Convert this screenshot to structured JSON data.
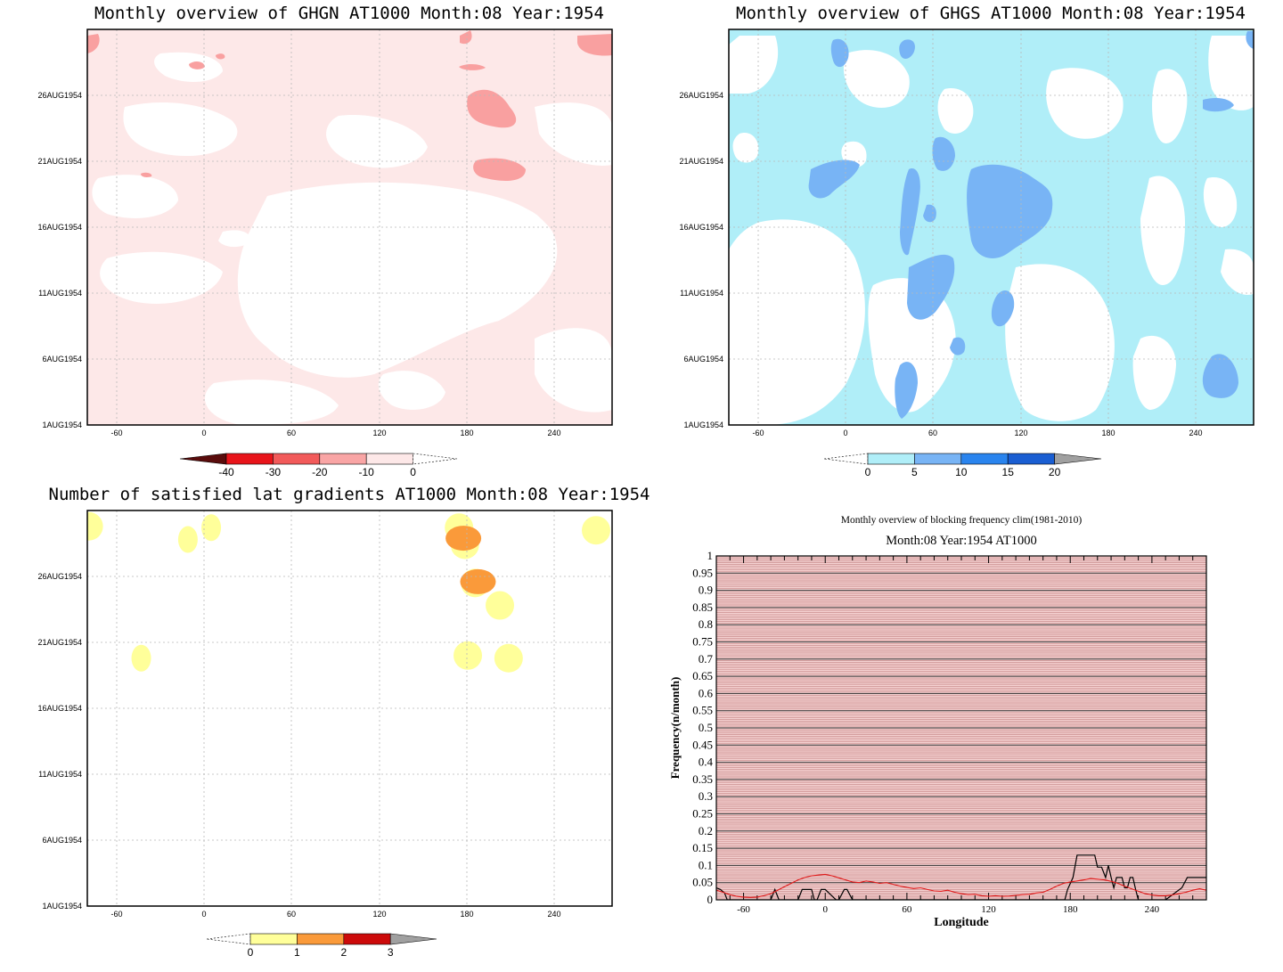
{
  "chart_data": [
    {
      "type": "heatmap",
      "title": "Monthly overview of GHGN AT1000 Month:08 Year:1954",
      "xlim": [
        -73,
        287
      ],
      "x_ticks": [
        -60,
        0,
        60,
        120,
        180,
        240
      ],
      "x_tick_labels": [
        "-60",
        "0",
        "60",
        "120",
        "180",
        "240"
      ],
      "y_tick_labels": [
        "1AUG1954",
        "6AUG1954",
        "11AUG1954",
        "16AUG1954",
        "21AUG1954",
        "26AUG1954"
      ],
      "y_tick_values": [
        1,
        6,
        11,
        16,
        21,
        26
      ],
      "ylim": [
        1,
        31
      ],
      "colorbar": {
        "levels": [
          "-40",
          "-30",
          "-20",
          "-10",
          "0"
        ],
        "colors": [
          "#5a0c0c",
          "#e8141a",
          "#f25a5a",
          "#f9a5a5",
          "#fde8e8"
        ],
        "extend_low_color": "#5a0c0c"
      },
      "fill_colors": {
        "background": "#fde8e8",
        "low": "#ffffff",
        "high": "#f9a0a0",
        "peak": "#ee5050"
      }
    },
    {
      "type": "heatmap",
      "title": "Monthly overview of GHGS AT1000 Month:08 Year:1954",
      "xlim": [
        -73,
        287
      ],
      "x_ticks": [
        -60,
        0,
        60,
        120,
        180,
        240
      ],
      "x_tick_labels": [
        "-60",
        "0",
        "60",
        "120",
        "180",
        "240"
      ],
      "y_tick_labels": [
        "1AUG1954",
        "6AUG1954",
        "11AUG1954",
        "16AUG1954",
        "21AUG1954",
        "26AUG1954"
      ],
      "y_tick_values": [
        1,
        6,
        11,
        16,
        21,
        26
      ],
      "ylim": [
        1,
        31
      ],
      "colorbar": {
        "levels": [
          "0",
          "5",
          "10",
          "15",
          "20"
        ],
        "colors": [
          "#b0eef8",
          "#78b4f5",
          "#2a84ee",
          "#1a5ed2",
          "#a0a0a0"
        ],
        "extend_high_color": "#a0a0a0"
      },
      "fill_colors": {
        "background": "#b0eef8",
        "low": "#ffffff",
        "high": "#78b4f5"
      }
    },
    {
      "type": "heatmap",
      "title": "Number of satisfied lat gradients AT1000 Month:08 Year:1954",
      "xlim": [
        -73,
        287
      ],
      "x_ticks": [
        -60,
        0,
        60,
        120,
        180,
        240
      ],
      "x_tick_labels": [
        "-60",
        "0",
        "60",
        "120",
        "180",
        "240"
      ],
      "y_tick_labels": [
        "1AUG1954",
        "6AUG1954",
        "11AUG1954",
        "16AUG1954",
        "21AUG1954",
        "26AUG1954"
      ],
      "y_tick_values": [
        1,
        6,
        11,
        16,
        21,
        26
      ],
      "ylim": [
        1,
        31
      ],
      "colorbar": {
        "levels": [
          "0",
          "1",
          "2",
          "3"
        ],
        "colors": [
          "#ffff9a",
          "#fa9a3a",
          "#cc0a0a",
          "#a0a0a0"
        ],
        "extend_high_color": "#a0a0a0"
      },
      "cells": [
        {
          "lon": -72,
          "day": 29.8,
          "value": 1
        },
        {
          "lon": 182,
          "day": 29.7,
          "value": 1
        },
        {
          "lon": 186,
          "day": 28.4,
          "value": 1
        },
        {
          "lon": 276,
          "day": 29.5,
          "value": 1
        },
        {
          "lon": -4,
          "day": 28.8,
          "value": 1
        },
        {
          "lon": 12,
          "day": 29.7,
          "value": 1
        },
        {
          "lon": 193,
          "day": 25.5,
          "value": 1
        },
        {
          "lon": 210,
          "day": 23.8,
          "value": 1
        },
        {
          "lon": -36,
          "day": 19.8,
          "value": 1
        },
        {
          "lon": 188,
          "day": 20.0,
          "value": 1
        },
        {
          "lon": 216,
          "day": 19.8,
          "value": 1
        },
        {
          "lon": 195,
          "day": 25.6,
          "value": 2
        },
        {
          "lon": 185,
          "day": 28.9,
          "value": 2
        }
      ]
    },
    {
      "type": "line",
      "title": "Monthly overview of blocking frequency clim(1981-2010)",
      "subtitle": "Month:08 Year:1954  AT1000",
      "xlabel": "Longitude",
      "ylabel": "Frequency(n/month)",
      "xlim": [
        -80,
        280
      ],
      "ylim": [
        0,
        1
      ],
      "x_ticks": [
        -60,
        0,
        60,
        120,
        180,
        240
      ],
      "x_tick_labels": [
        "-60",
        "0",
        "60",
        "120",
        "180",
        "240"
      ],
      "y_ticks": [
        0,
        0.05,
        0.1,
        0.15,
        0.2,
        0.25,
        0.3,
        0.35,
        0.4,
        0.45,
        0.5,
        0.55,
        0.6,
        0.65,
        0.7,
        0.75,
        0.8,
        0.85,
        0.9,
        0.95,
        1
      ],
      "y_tick_labels": [
        "0",
        "0.05",
        "0.1",
        "0.15",
        "0.2",
        "0.25",
        "0.3",
        "0.35",
        "0.4",
        "0.45",
        "0.5",
        "0.55",
        "0.6",
        "0.65",
        "0.7",
        "0.75",
        "0.8",
        "0.85",
        "0.9",
        "0.95",
        "1"
      ],
      "series": [
        {
          "color": "#000000",
          "x": [
            -80,
            -77,
            -74,
            -72,
            -60,
            -50,
            -40,
            -37,
            -34,
            -20,
            -17,
            -10,
            -8,
            -6,
            -3,
            0,
            8,
            10,
            14,
            16,
            20,
            40,
            60,
            80,
            100,
            120,
            140,
            160,
            176,
            178,
            182,
            185,
            190,
            194,
            198,
            200,
            203,
            206,
            208,
            210,
            212,
            214,
            216,
            218,
            220,
            222,
            224,
            226,
            228,
            230,
            235,
            240,
            250,
            262,
            266,
            270,
            280
          ],
          "y": [
            0.035,
            0.03,
            0.02,
            0.0,
            0.0,
            0.0,
            0.0,
            0.03,
            0.0,
            0.0,
            0.03,
            0.03,
            0.0,
            0.0,
            0.03,
            0.03,
            0.0,
            0.0,
            0.03,
            0.03,
            0.0,
            0.0,
            0.0,
            0.0,
            0.0,
            0.0,
            0.0,
            0.0,
            0.0,
            0.03,
            0.065,
            0.13,
            0.13,
            0.13,
            0.13,
            0.095,
            0.095,
            0.065,
            0.1,
            0.065,
            0.035,
            0.065,
            0.065,
            0.065,
            0.035,
            0.035,
            0.065,
            0.065,
            0.03,
            0.0,
            0.0,
            0.0,
            0.0,
            0.035,
            0.065,
            0.065,
            0.065
          ]
        },
        {
          "color": "#e01818",
          "x": [
            -80,
            -75,
            -70,
            -65,
            -60,
            -55,
            -50,
            -45,
            -40,
            -35,
            -30,
            -25,
            -20,
            -15,
            -10,
            -5,
            0,
            5,
            10,
            15,
            20,
            25,
            30,
            35,
            40,
            45,
            50,
            55,
            60,
            65,
            70,
            75,
            80,
            85,
            90,
            95,
            100,
            105,
            110,
            115,
            120,
            125,
            130,
            135,
            140,
            145,
            150,
            155,
            160,
            165,
            170,
            175,
            180,
            185,
            190,
            195,
            200,
            205,
            210,
            215,
            220,
            225,
            230,
            235,
            240,
            245,
            250,
            255,
            260,
            265,
            270,
            275,
            280
          ],
          "y": [
            0.028,
            0.022,
            0.015,
            0.01,
            0.008,
            0.007,
            0.008,
            0.012,
            0.018,
            0.028,
            0.038,
            0.048,
            0.058,
            0.065,
            0.07,
            0.072,
            0.074,
            0.07,
            0.064,
            0.058,
            0.052,
            0.05,
            0.055,
            0.052,
            0.048,
            0.05,
            0.045,
            0.04,
            0.036,
            0.033,
            0.035,
            0.03,
            0.026,
            0.025,
            0.028,
            0.022,
            0.018,
            0.015,
            0.016,
            0.012,
            0.01,
            0.012,
            0.01,
            0.011,
            0.013,
            0.015,
            0.016,
            0.02,
            0.022,
            0.03,
            0.04,
            0.048,
            0.052,
            0.055,
            0.058,
            0.062,
            0.06,
            0.058,
            0.054,
            0.048,
            0.04,
            0.032,
            0.025,
            0.018,
            0.014,
            0.012,
            0.012,
            0.014,
            0.018,
            0.022,
            0.028,
            0.032,
            0.028
          ]
        }
      ]
    }
  ]
}
